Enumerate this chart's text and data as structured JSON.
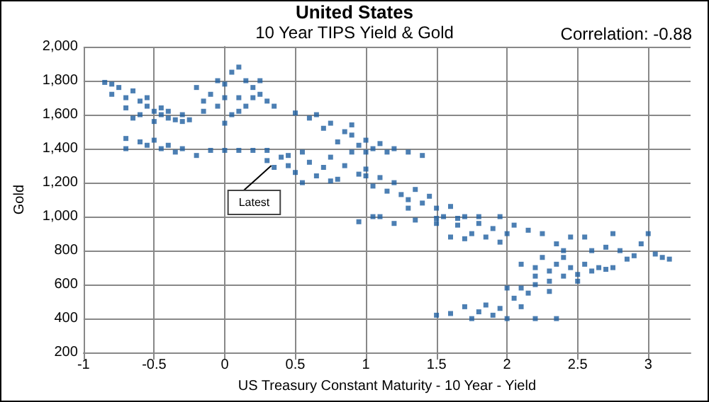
{
  "chart_data": {
    "type": "scatter",
    "title": "United States",
    "subtitle": "10 Year TIPS Yield & Gold",
    "xlabel": "US Treasury Constant Maturity - 10 Year - Yield",
    "ylabel": "Gold",
    "annotations": [
      "Correlation: -0.88",
      {
        "text": "Latest",
        "x": 0.33,
        "y": 1300
      }
    ],
    "xlim": [
      -1,
      3.3
    ],
    "xticks": [
      -1,
      -0.5,
      0,
      0.5,
      1,
      1.5,
      2,
      2.5,
      3
    ],
    "ylim": [
      200,
      2000
    ],
    "yticks": [
      {
        "value": 200,
        "label": "200"
      },
      {
        "value": 400,
        "label": "400"
      },
      {
        "value": 600,
        "label": "600"
      },
      {
        "value": 800,
        "label": "800"
      },
      {
        "value": 1000,
        "label": "1,000"
      },
      {
        "value": 1200,
        "label": "1,200"
      },
      {
        "value": 1400,
        "label": "1,400"
      },
      {
        "value": 1600,
        "label": "1,600"
      },
      {
        "value": 1800,
        "label": "1,800"
      },
      {
        "value": 2000,
        "label": "2,000"
      }
    ],
    "grid": true,
    "marker": "square",
    "series": [
      {
        "color": "#1f5fa0",
        "x": [
          -0.85,
          -0.8,
          -0.75,
          -0.7,
          -0.65,
          -0.6,
          -0.55,
          -0.5,
          -0.45,
          -0.4,
          -0.35,
          -0.3,
          -0.6,
          -0.5,
          -0.7,
          -0.45,
          -0.4,
          -0.55,
          -0.8,
          -0.65,
          -0.3,
          -0.25,
          -0.7,
          -0.7,
          -0.6,
          -0.5,
          -0.45,
          -0.4,
          -0.35,
          -0.3,
          -0.2,
          -0.1,
          0,
          0.1,
          0.2,
          0.3,
          -0.55,
          -0.2,
          -0.15,
          -0.1,
          -0.05,
          0,
          0,
          0.05,
          0.1,
          0.15,
          0.2,
          0.25,
          0.3,
          0.35,
          0.05,
          0,
          0.1,
          0.15,
          0.2,
          -0.05,
          0.25,
          -0.15,
          0.1,
          0.3,
          0.35,
          0.4,
          0.45,
          0.5,
          0.55,
          0.6,
          0.65,
          0.7,
          0.75,
          0.8,
          0.85,
          0.9,
          0.95,
          1.0,
          0.55,
          0.75,
          0.45,
          0.5,
          0.6,
          0.65,
          0.7,
          0.75,
          0.85,
          0.9,
          0.95,
          1.0,
          1.05,
          1.1,
          1.15,
          1.2,
          1.3,
          1.4,
          0.8,
          1.0,
          0.9,
          1.0,
          1.05,
          1.1,
          1.15,
          1.2,
          1.25,
          1.3,
          1.35,
          1.4,
          1.45,
          1.5,
          1.55,
          1.6,
          1.65,
          1.7,
          1.75,
          1.8,
          1.85,
          1.9,
          1.95,
          2.0,
          1.6,
          1.7,
          1.3,
          1.5,
          0.95,
          1.05,
          1.2,
          1.35,
          1.5,
          1.65,
          1.8,
          1.95,
          2.05,
          2.15,
          2.25,
          1.1,
          2.1,
          2.2,
          2.25,
          2.3,
          2.35,
          2.4,
          2.45,
          2.5,
          2.55,
          2.6,
          2.65,
          2.7,
          2.75,
          2.4,
          2.5,
          2.3,
          2.2,
          2.35,
          2.45,
          2.6,
          2.7,
          2.75,
          2.8,
          2.9,
          2.95,
          3.0,
          3.05,
          3.1,
          3.15,
          2.85,
          2.55,
          2.4,
          1.5,
          1.6,
          1.7,
          1.8,
          1.85,
          1.9,
          1.95,
          2.0,
          2.05,
          2.1,
          2.15,
          2.2,
          2.3,
          2.35,
          2.2,
          2.0,
          1.75,
          2.1
        ],
        "values": [
          1790,
          1720,
          1760,
          1700,
          1740,
          1680,
          1650,
          1620,
          1600,
          1580,
          1570,
          1560,
          1600,
          1560,
          1640,
          1640,
          1620,
          1700,
          1780,
          1580,
          1600,
          1570,
          1460,
          1400,
          1440,
          1450,
          1400,
          1420,
          1380,
          1400,
          1360,
          1390,
          1390,
          1390,
          1390,
          1390,
          1420,
          1760,
          1680,
          1720,
          1650,
          1700,
          1780,
          1850,
          1880,
          1800,
          1760,
          1720,
          1680,
          1650,
          1600,
          1550,
          1700,
          1650,
          1700,
          1800,
          1800,
          1620,
          1620,
          1330,
          1290,
          1350,
          1300,
          1260,
          1380,
          1320,
          1240,
          1290,
          1350,
          1220,
          1300,
          1380,
          1250,
          1280,
          1200,
          1210,
          1360,
          1610,
          1580,
          1600,
          1520,
          1550,
          1500,
          1480,
          1420,
          1450,
          1400,
          1430,
          1380,
          1400,
          1380,
          1360,
          1440,
          1380,
          1540,
          1240,
          1180,
          1230,
          1150,
          1200,
          1130,
          1100,
          1160,
          1080,
          1120,
          1050,
          1000,
          1060,
          950,
          1000,
          900,
          960,
          880,
          930,
          850,
          900,
          880,
          870,
          1050,
          960,
          970,
          1000,
          960,
          980,
          990,
          990,
          1000,
          1000,
          950,
          920,
          900,
          1000,
          720,
          700,
          760,
          680,
          720,
          650,
          700,
          660,
          720,
          680,
          700,
          690,
          700,
          760,
          620,
          620,
          650,
          840,
          880,
          800,
          820,
          900,
          800,
          770,
          840,
          900,
          780,
          760,
          750,
          750,
          880,
          800,
          420,
          430,
          470,
          440,
          480,
          420,
          460,
          400,
          520,
          580,
          550,
          600,
          560,
          400,
          400,
          580,
          400,
          470
        ]
      }
    ]
  }
}
